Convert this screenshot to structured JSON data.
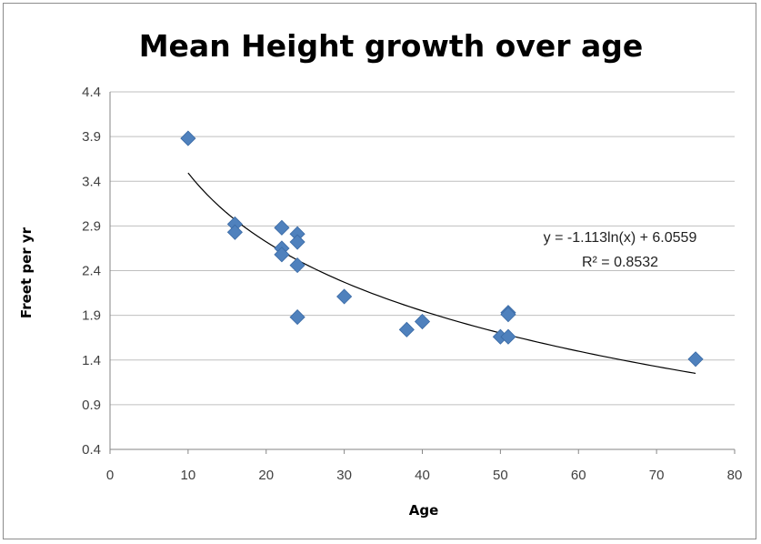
{
  "chart_data": {
    "type": "scatter",
    "title": "Mean Height growth over age",
    "xlabel": "Age",
    "ylabel": "Freet per yr",
    "xlim": [
      0,
      80
    ],
    "ylim": [
      0.4,
      4.4
    ],
    "x_ticks": [
      "0",
      "10",
      "20",
      "30",
      "40",
      "50",
      "60",
      "70",
      "80"
    ],
    "y_ticks": [
      "0.4",
      "0.9",
      "1.4",
      "1.9",
      "2.4",
      "2.9",
      "3.4",
      "3.9",
      "4.4"
    ],
    "grid": "horizontal",
    "marker_color": "#4F81BD",
    "trendline_color": "#000000",
    "points": [
      {
        "x": 10,
        "y": 3.88
      },
      {
        "x": 16,
        "y": 2.92
      },
      {
        "x": 16,
        "y": 2.83
      },
      {
        "x": 22,
        "y": 2.88
      },
      {
        "x": 22,
        "y": 2.65
      },
      {
        "x": 22,
        "y": 2.58
      },
      {
        "x": 24,
        "y": 2.81
      },
      {
        "x": 24,
        "y": 2.72
      },
      {
        "x": 24,
        "y": 2.46
      },
      {
        "x": 24,
        "y": 1.88
      },
      {
        "x": 30,
        "y": 2.11
      },
      {
        "x": 38,
        "y": 1.74
      },
      {
        "x": 40,
        "y": 1.83
      },
      {
        "x": 50,
        "y": 1.66
      },
      {
        "x": 51,
        "y": 1.93
      },
      {
        "x": 51,
        "y": 1.91
      },
      {
        "x": 51,
        "y": 1.66
      },
      {
        "x": 75,
        "y": 1.41
      }
    ],
    "trendline": {
      "type": "logarithmic",
      "a": -1.113,
      "b": 6.0559,
      "x_range": [
        10,
        75
      ],
      "equation": "y = -1.113ln(x) + 6.0559",
      "r_squared": "R² = 0.8532"
    }
  }
}
